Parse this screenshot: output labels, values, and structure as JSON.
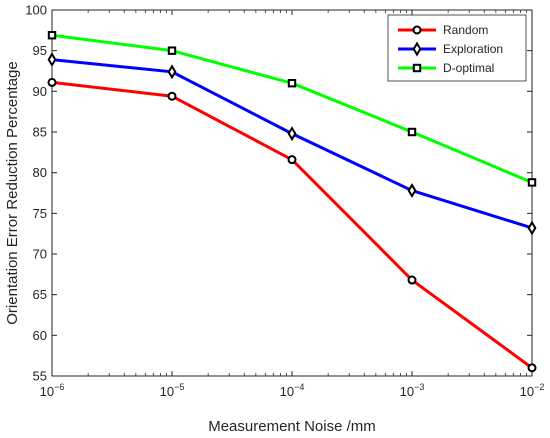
{
  "chart_data": {
    "type": "line",
    "xlabel": "Measurement Noise /mm",
    "ylabel": "Orientation Error Reduction Percentage",
    "x": [
      1e-06,
      1e-05,
      0.0001,
      0.001,
      0.01
    ],
    "x_tick_labels": [
      {
        "base": "10",
        "exp": "−6"
      },
      {
        "base": "10",
        "exp": "−5"
      },
      {
        "base": "10",
        "exp": "−4"
      },
      {
        "base": "10",
        "exp": "−3"
      },
      {
        "base": "10",
        "exp": "−2"
      }
    ],
    "x_scale": "log",
    "xlim": [
      1e-06,
      0.01
    ],
    "ylim": [
      55,
      100
    ],
    "y_ticks": [
      55,
      60,
      65,
      70,
      75,
      80,
      85,
      90,
      95,
      100
    ],
    "grid": false,
    "legend_position": "top-right",
    "series": [
      {
        "name": "Random",
        "color": "#ff0000",
        "marker": "circle",
        "values": [
          91.1,
          89.4,
          81.6,
          66.8,
          56.0
        ]
      },
      {
        "name": "Exploration",
        "color": "#0000ff",
        "marker": "diamond",
        "values": [
          93.9,
          92.4,
          84.8,
          77.8,
          73.2
        ]
      },
      {
        "name": "D-optimal",
        "color": "#00ff00",
        "marker": "square",
        "values": [
          96.9,
          95.0,
          91.0,
          85.0,
          78.8
        ]
      }
    ]
  }
}
